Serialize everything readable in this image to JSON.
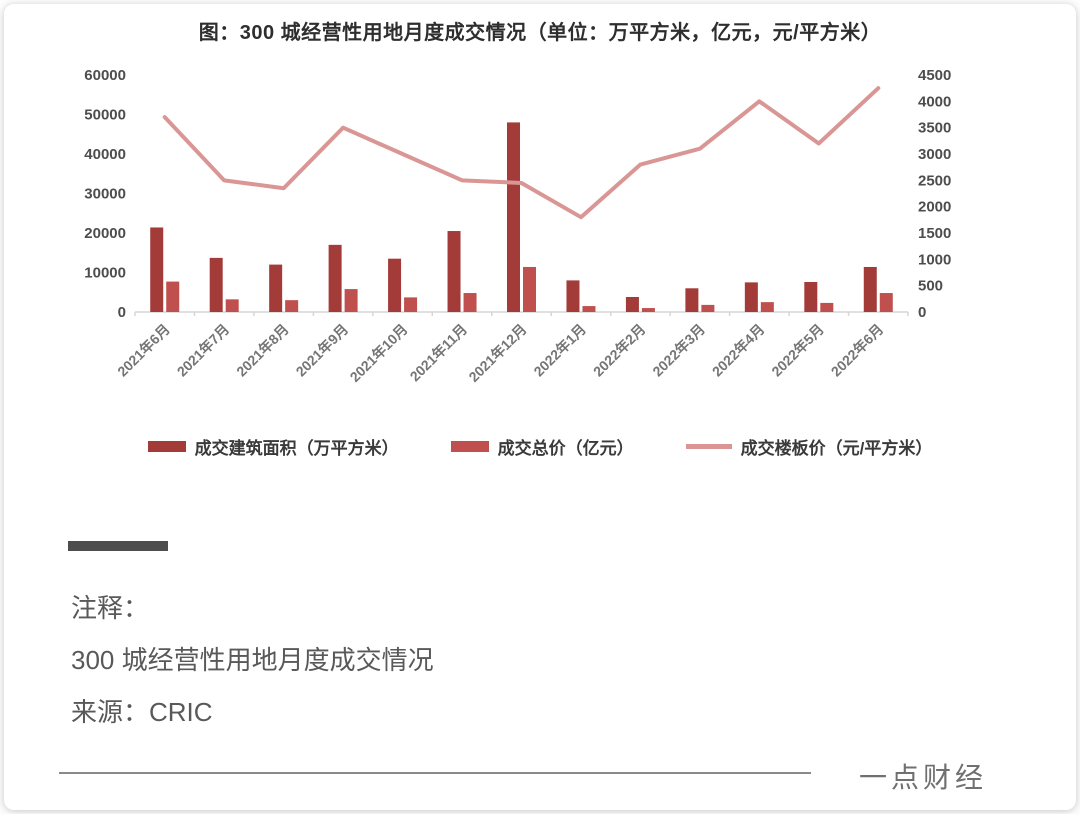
{
  "card": {
    "title": "图：300 城经营性用地月度成交情况（单位：万平方米，亿元，元/平方米）"
  },
  "chart_data": {
    "type": "bar",
    "subtype": "combo-bar-line",
    "title": "图：300 城经营性用地月度成交情况（单位：万平方米，亿元，元/平方米）",
    "categories": [
      "2021年6月",
      "2021年7月",
      "2021年8月",
      "2021年9月",
      "2021年10月",
      "2021年11月",
      "2021年12月",
      "2022年1月",
      "2022年2月",
      "2022年3月",
      "2022年4月",
      "2022年5月",
      "2022年6月"
    ],
    "series": [
      {
        "name": "成交建筑面积（万平方米）",
        "type": "bar",
        "axis": "left",
        "color": "#A33C39",
        "values": [
          21400,
          13700,
          12000,
          17000,
          13500,
          20500,
          48000,
          8000,
          3800,
          6000,
          7500,
          7600,
          11400
        ]
      },
      {
        "name": "成交总价（亿元）",
        "type": "bar",
        "axis": "left",
        "color": "#C0504D",
        "values": [
          7700,
          3200,
          3000,
          5800,
          3700,
          4800,
          11400,
          1500,
          1000,
          1800,
          2500,
          2300,
          4800
        ]
      },
      {
        "name": "成交楼板价（元/平方米）",
        "type": "line",
        "axis": "right",
        "color": "#D99694",
        "values": [
          3700,
          2500,
          2350,
          3500,
          3000,
          2500,
          2450,
          1800,
          2800,
          3100,
          4000,
          3200,
          4250
        ]
      }
    ],
    "left_axis": {
      "min": 0,
      "max": 60000,
      "step": 10000,
      "ticks": [
        "0",
        "10000",
        "20000",
        "30000",
        "40000",
        "50000",
        "60000"
      ]
    },
    "right_axis": {
      "min": 0,
      "max": 4500,
      "step": 500,
      "ticks": [
        "0",
        "500",
        "1000",
        "1500",
        "2000",
        "2500",
        "3000",
        "3500",
        "4000",
        "4500"
      ]
    },
    "grid": false,
    "legend_position": "bottom",
    "xlabel": "",
    "ylabel": ""
  },
  "notes": {
    "label": "注释：",
    "description": "300 城经营性用地月度成交情况",
    "source": "来源：CRIC"
  },
  "footer": {
    "brand": "一点财经"
  }
}
